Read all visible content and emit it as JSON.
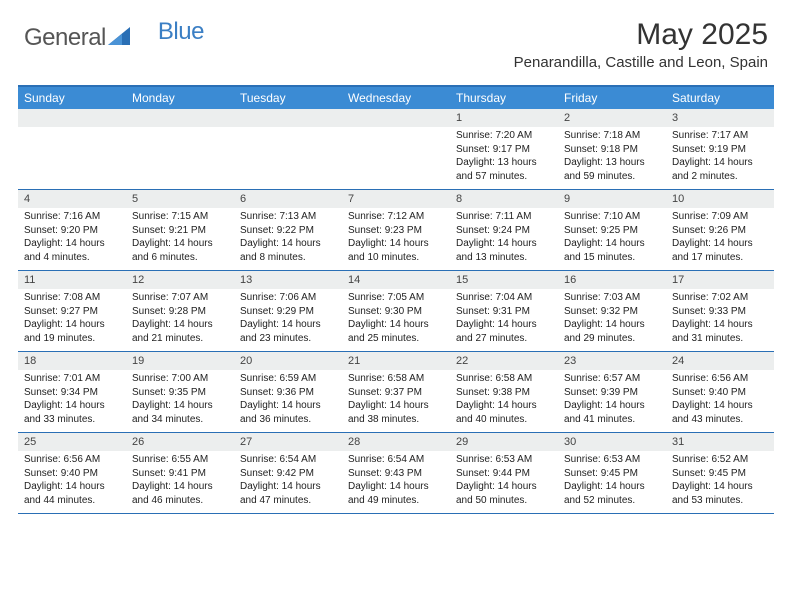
{
  "logo": {
    "text1": "General",
    "text2": "Blue",
    "triangle_color": "#2a6fb5"
  },
  "title": "May 2025",
  "location": "Penarandilla, Castille and Leon, Spain",
  "colors": {
    "header_bar": "#3b8bd4",
    "border": "#2a6fb5",
    "daynum_bg": "#eceeee",
    "text": "#333333"
  },
  "weekdays": [
    "Sunday",
    "Monday",
    "Tuesday",
    "Wednesday",
    "Thursday",
    "Friday",
    "Saturday"
  ],
  "weeks": [
    [
      null,
      null,
      null,
      null,
      {
        "n": "1",
        "sr": "7:20 AM",
        "ss": "9:17 PM",
        "dl": "13 hours and 57 minutes."
      },
      {
        "n": "2",
        "sr": "7:18 AM",
        "ss": "9:18 PM",
        "dl": "13 hours and 59 minutes."
      },
      {
        "n": "3",
        "sr": "7:17 AM",
        "ss": "9:19 PM",
        "dl": "14 hours and 2 minutes."
      }
    ],
    [
      {
        "n": "4",
        "sr": "7:16 AM",
        "ss": "9:20 PM",
        "dl": "14 hours and 4 minutes."
      },
      {
        "n": "5",
        "sr": "7:15 AM",
        "ss": "9:21 PM",
        "dl": "14 hours and 6 minutes."
      },
      {
        "n": "6",
        "sr": "7:13 AM",
        "ss": "9:22 PM",
        "dl": "14 hours and 8 minutes."
      },
      {
        "n": "7",
        "sr": "7:12 AM",
        "ss": "9:23 PM",
        "dl": "14 hours and 10 minutes."
      },
      {
        "n": "8",
        "sr": "7:11 AM",
        "ss": "9:24 PM",
        "dl": "14 hours and 13 minutes."
      },
      {
        "n": "9",
        "sr": "7:10 AM",
        "ss": "9:25 PM",
        "dl": "14 hours and 15 minutes."
      },
      {
        "n": "10",
        "sr": "7:09 AM",
        "ss": "9:26 PM",
        "dl": "14 hours and 17 minutes."
      }
    ],
    [
      {
        "n": "11",
        "sr": "7:08 AM",
        "ss": "9:27 PM",
        "dl": "14 hours and 19 minutes."
      },
      {
        "n": "12",
        "sr": "7:07 AM",
        "ss": "9:28 PM",
        "dl": "14 hours and 21 minutes."
      },
      {
        "n": "13",
        "sr": "7:06 AM",
        "ss": "9:29 PM",
        "dl": "14 hours and 23 minutes."
      },
      {
        "n": "14",
        "sr": "7:05 AM",
        "ss": "9:30 PM",
        "dl": "14 hours and 25 minutes."
      },
      {
        "n": "15",
        "sr": "7:04 AM",
        "ss": "9:31 PM",
        "dl": "14 hours and 27 minutes."
      },
      {
        "n": "16",
        "sr": "7:03 AM",
        "ss": "9:32 PM",
        "dl": "14 hours and 29 minutes."
      },
      {
        "n": "17",
        "sr": "7:02 AM",
        "ss": "9:33 PM",
        "dl": "14 hours and 31 minutes."
      }
    ],
    [
      {
        "n": "18",
        "sr": "7:01 AM",
        "ss": "9:34 PM",
        "dl": "14 hours and 33 minutes."
      },
      {
        "n": "19",
        "sr": "7:00 AM",
        "ss": "9:35 PM",
        "dl": "14 hours and 34 minutes."
      },
      {
        "n": "20",
        "sr": "6:59 AM",
        "ss": "9:36 PM",
        "dl": "14 hours and 36 minutes."
      },
      {
        "n": "21",
        "sr": "6:58 AM",
        "ss": "9:37 PM",
        "dl": "14 hours and 38 minutes."
      },
      {
        "n": "22",
        "sr": "6:58 AM",
        "ss": "9:38 PM",
        "dl": "14 hours and 40 minutes."
      },
      {
        "n": "23",
        "sr": "6:57 AM",
        "ss": "9:39 PM",
        "dl": "14 hours and 41 minutes."
      },
      {
        "n": "24",
        "sr": "6:56 AM",
        "ss": "9:40 PM",
        "dl": "14 hours and 43 minutes."
      }
    ],
    [
      {
        "n": "25",
        "sr": "6:56 AM",
        "ss": "9:40 PM",
        "dl": "14 hours and 44 minutes."
      },
      {
        "n": "26",
        "sr": "6:55 AM",
        "ss": "9:41 PM",
        "dl": "14 hours and 46 minutes."
      },
      {
        "n": "27",
        "sr": "6:54 AM",
        "ss": "9:42 PM",
        "dl": "14 hours and 47 minutes."
      },
      {
        "n": "28",
        "sr": "6:54 AM",
        "ss": "9:43 PM",
        "dl": "14 hours and 49 minutes."
      },
      {
        "n": "29",
        "sr": "6:53 AM",
        "ss": "9:44 PM",
        "dl": "14 hours and 50 minutes."
      },
      {
        "n": "30",
        "sr": "6:53 AM",
        "ss": "9:45 PM",
        "dl": "14 hours and 52 minutes."
      },
      {
        "n": "31",
        "sr": "6:52 AM",
        "ss": "9:45 PM",
        "dl": "14 hours and 53 minutes."
      }
    ]
  ],
  "labels": {
    "sunrise": "Sunrise: ",
    "sunset": "Sunset: ",
    "daylight": "Daylight: "
  }
}
